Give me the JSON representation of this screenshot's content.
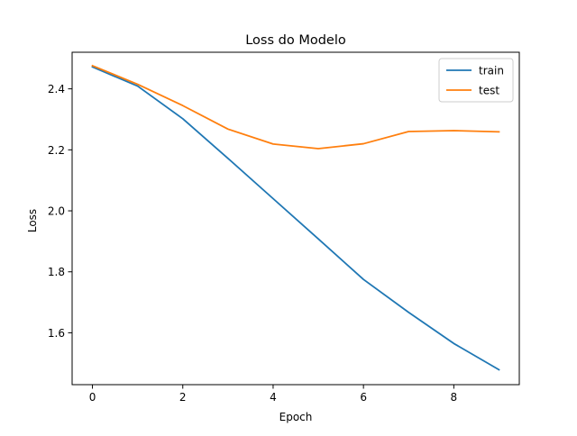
{
  "chart_data": {
    "type": "line",
    "title": "Loss do Modelo",
    "xlabel": "Epoch",
    "ylabel": "Loss",
    "x": [
      0,
      1,
      2,
      3,
      4,
      5,
      6,
      7,
      8,
      9
    ],
    "xlim": [
      -0.45,
      9.45
    ],
    "ylim": [
      1.43,
      2.52
    ],
    "xticks": [
      0,
      2,
      4,
      6,
      8
    ],
    "yticks": [
      1.6,
      1.8,
      2.0,
      2.2,
      2.4
    ],
    "xtick_labels": [
      "0",
      "2",
      "4",
      "6",
      "8"
    ],
    "ytick_labels": [
      "1.6",
      "1.8",
      "2.0",
      "2.2",
      "2.4"
    ],
    "grid": false,
    "legend_position": "top-right",
    "series": [
      {
        "name": "train",
        "color": "#1f77b4",
        "values": [
          2.472,
          2.409,
          2.302,
          2.172,
          2.04,
          1.908,
          1.775,
          1.667,
          1.565,
          1.479
        ]
      },
      {
        "name": "test",
        "color": "#ff7f0e",
        "values": [
          2.476,
          2.415,
          2.345,
          2.268,
          2.219,
          2.204,
          2.22,
          2.26,
          2.263,
          2.259
        ]
      }
    ]
  }
}
